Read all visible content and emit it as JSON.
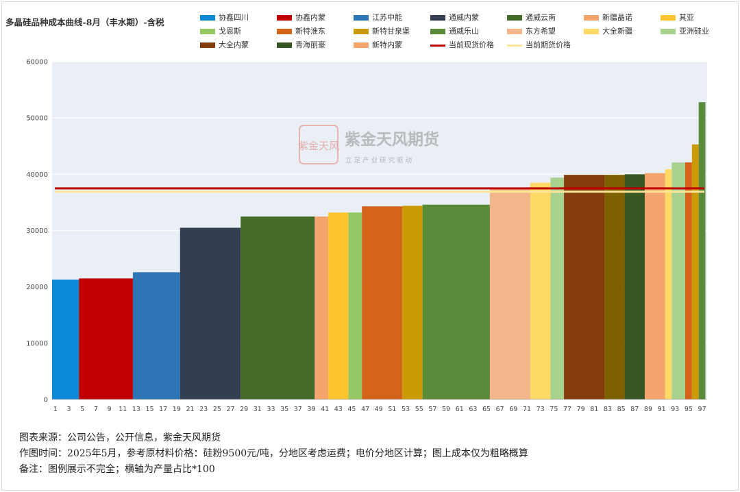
{
  "title": "多晶硅品种成本曲线-8月（丰水期）-含税",
  "watermark": {
    "logo_text": "紫金天风",
    "name": "紫金天风期货",
    "slogan": "立 足 产 业   研 究 驱 动"
  },
  "footer": {
    "line1": "图表来源：公司公告，公开信息，紫金天风期货",
    "line2": "作图时间：2025年5月，参考原材料价格：硅粉9500元/吨，分地区考虑运费；电价分地区计算；图上成本仅为粗略概算",
    "line3": "备注：图例展示不完全；横轴为产量占比*100"
  },
  "legend": [
    {
      "name": "协鑫四川",
      "color": "#0a8ad6",
      "kind": "bar"
    },
    {
      "name": "协鑫内蒙",
      "color": "#c00000",
      "kind": "bar"
    },
    {
      "name": "江苏中能",
      "color": "#2e75b6",
      "kind": "bar"
    },
    {
      "name": "通威内蒙",
      "color": "#333f50",
      "kind": "bar"
    },
    {
      "name": "通威云南",
      "color": "#456b2b",
      "kind": "bar"
    },
    {
      "name": "新疆晶诺",
      "color": "#f4a46d",
      "kind": "bar"
    },
    {
      "name": "其亚",
      "color": "#ffc52e",
      "kind": "bar"
    },
    {
      "name": "戈恩斯",
      "color": "#96c765",
      "kind": "bar"
    },
    {
      "name": "新特淮东",
      "color": "#d4641a",
      "kind": "bar"
    },
    {
      "name": "新特甘泉堡",
      "color": "#cc9a06",
      "kind": "bar"
    },
    {
      "name": "通威乐山",
      "color": "#5a8a3a",
      "kind": "bar"
    },
    {
      "name": "东方希望",
      "color": "#f2b68a",
      "kind": "bar"
    },
    {
      "name": "大全新疆",
      "color": "#ffd966",
      "kind": "bar"
    },
    {
      "name": "亚洲硅业",
      "color": "#a9d18e",
      "kind": "bar"
    },
    {
      "name": "大全内蒙",
      "color": "#843c0c",
      "kind": "bar"
    },
    {
      "name": "青海丽豪",
      "color": "#375623",
      "kind": "bar"
    },
    {
      "name": "新特内蒙",
      "color": "#f4a46d",
      "kind": "bar"
    },
    {
      "name": "当前现货价格",
      "color": "#c00000",
      "kind": "line"
    },
    {
      "name": "当前期货价格",
      "color": "#ffe699",
      "kind": "line"
    }
  ],
  "chart_data": {
    "type": "bar",
    "title": "多晶硅品种成本曲线-8月（丰水期）-含税",
    "xlabel": "",
    "ylabel": "",
    "ylim": [
      0,
      60000
    ],
    "yticks": [
      0,
      10000,
      20000,
      30000,
      40000,
      50000,
      60000
    ],
    "xlim": [
      0,
      97.5
    ],
    "xticks": [
      1,
      3,
      5,
      7,
      9,
      11,
      13,
      15,
      17,
      19,
      21,
      23,
      25,
      27,
      29,
      31,
      33,
      35,
      37,
      39,
      41,
      43,
      45,
      47,
      49,
      51,
      53,
      55,
      57,
      59,
      61,
      63,
      65,
      67,
      69,
      71,
      73,
      75,
      77,
      79,
      81,
      83,
      85,
      87,
      89,
      91,
      93,
      95,
      97
    ],
    "grid": "horizontal",
    "legend_position": "top",
    "bars": [
      {
        "x0": 0,
        "x1": 4,
        "value": 21300,
        "color": "#0a8ad6"
      },
      {
        "x0": 4,
        "x1": 12,
        "value": 21500,
        "color": "#c00000"
      },
      {
        "x0": 12,
        "x1": 19,
        "value": 22600,
        "color": "#2e75b6"
      },
      {
        "x0": 19,
        "x1": 28,
        "value": 30500,
        "color": "#333f50"
      },
      {
        "x0": 28,
        "x1": 39,
        "value": 32500,
        "color": "#456b2b"
      },
      {
        "x0": 39,
        "x1": 41,
        "value": 32500,
        "color": "#f4a46d"
      },
      {
        "x0": 41,
        "x1": 44,
        "value": 33200,
        "color": "#ffc52e"
      },
      {
        "x0": 44,
        "x1": 46,
        "value": 33200,
        "color": "#96c765"
      },
      {
        "x0": 46,
        "x1": 52,
        "value": 34300,
        "color": "#d4641a"
      },
      {
        "x0": 52,
        "x1": 55,
        "value": 34400,
        "color": "#cc9a06"
      },
      {
        "x0": 55,
        "x1": 65,
        "value": 34600,
        "color": "#5a8a3a"
      },
      {
        "x0": 65,
        "x1": 71,
        "value": 37400,
        "color": "#f2b68a"
      },
      {
        "x0": 71,
        "x1": 74,
        "value": 38500,
        "color": "#ffd966"
      },
      {
        "x0": 74,
        "x1": 76,
        "value": 39400,
        "color": "#a9d18e"
      },
      {
        "x0": 76,
        "x1": 82,
        "value": 39900,
        "color": "#843c0c"
      },
      {
        "x0": 82,
        "x1": 85,
        "value": 39900,
        "color": "#7f6000"
      },
      {
        "x0": 85,
        "x1": 88,
        "value": 40000,
        "color": "#375623"
      },
      {
        "x0": 88,
        "x1": 91,
        "value": 40200,
        "color": "#f4a46d"
      },
      {
        "x0": 91,
        "x1": 92,
        "value": 40900,
        "color": "#ffd966"
      },
      {
        "x0": 92,
        "x1": 94,
        "value": 42100,
        "color": "#a9d18e"
      },
      {
        "x0": 94,
        "x1": 95,
        "value": 42100,
        "color": "#d4641a"
      },
      {
        "x0": 95,
        "x1": 96,
        "value": 45300,
        "color": "#cc9a06"
      },
      {
        "x0": 96,
        "x1": 97,
        "value": 52800,
        "color": "#5a8a3a"
      }
    ],
    "lines": [
      {
        "name": "当前现货价格",
        "value": 37500,
        "color": "#c00000"
      },
      {
        "name": "当前期货价格",
        "value": 36900,
        "color": "#ffe699"
      }
    ]
  }
}
